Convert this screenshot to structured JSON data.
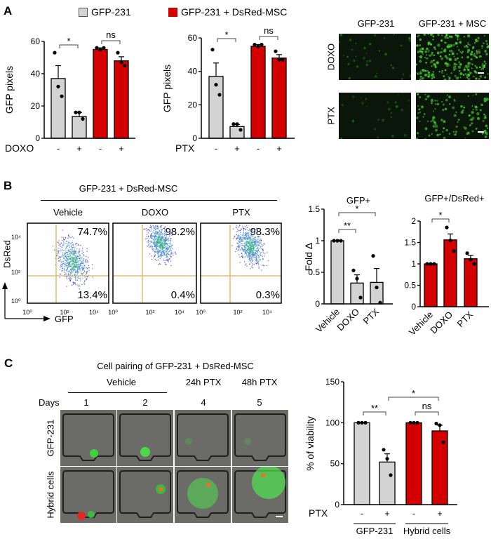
{
  "figure": {
    "panel_labels": {
      "a": "A",
      "b": "B",
      "c": "C"
    },
    "legend": [
      {
        "label": "GFP-231",
        "color": "#d3d3d3"
      },
      {
        "label": "GFP-231 + DsRed-MSC",
        "color": "#d40000"
      }
    ],
    "panel_a_images": {
      "columns": [
        "GFP-231",
        "GFP-231 + MSC"
      ],
      "rows": [
        "DOXO",
        "PTX"
      ]
    },
    "panel_b_flow": {
      "title": "GFP-231 + DsRed-MSC",
      "x_axis": "GFP",
      "y_axis": "DsRed",
      "x_ticks": [
        "10⁰",
        "10²",
        "10⁴"
      ],
      "y_ticks": [
        "10⁴",
        "10²",
        "10⁰"
      ],
      "conditions": [
        {
          "label": "Vehicle",
          "upper_right": "74.7%",
          "lower_right": "13.4%"
        },
        {
          "label": "DOXO",
          "upper_right": "98.2%",
          "lower_right": "0.4%"
        },
        {
          "label": "PTX",
          "upper_right": "98.3%",
          "lower_right": "0.3%"
        }
      ],
      "gate_color": "#d9b25a",
      "density_colors": [
        "#2b2bd0",
        "#3c7fd0",
        "#33a890"
      ]
    },
    "panel_c_images": {
      "title": "Cell pairing of GFP-231 + DsRed-MSC",
      "vehicle_label": "Vehicle",
      "treatment_labels": [
        "24h PTX",
        "48h PTX"
      ],
      "days_label": "Days",
      "days": [
        "1",
        "2",
        "4",
        "5"
      ],
      "rows": [
        "GFP-231",
        "Hybrid cells"
      ]
    }
  },
  "chart_data": [
    {
      "type": "bar",
      "ylabel": "GFP pixels",
      "ylim": [
        0,
        60
      ],
      "yticks": [
        0,
        20,
        40,
        60
      ],
      "treatment_label": "DOXO",
      "categories": [
        "-",
        "+",
        "-",
        "+"
      ],
      "groups": [
        "GFP-231",
        "GFP-231",
        "GFP-231 + DsRed-MSC",
        "GFP-231 + DsRed-MSC"
      ],
      "values": [
        37,
        13.5,
        55,
        48
      ],
      "sem": [
        8,
        2.5,
        1,
        2.5
      ],
      "points": [
        [
          53,
          32,
          26
        ],
        [
          16,
          16,
          12
        ],
        [
          56,
          55,
          56
        ],
        [
          53,
          47,
          45
        ]
      ],
      "colors": [
        "#d3d3d3",
        "#d3d3d3",
        "#d40000",
        "#d40000"
      ],
      "significance": [
        {
          "pair": [
            0,
            1
          ],
          "label": "*"
        },
        {
          "pair": [
            2,
            3
          ],
          "label": "ns"
        }
      ]
    },
    {
      "type": "bar",
      "ylabel": "GFP pixels",
      "ylim": [
        0,
        60
      ],
      "yticks": [
        0,
        20,
        40,
        60
      ],
      "treatment_label": "PTX",
      "categories": [
        "-",
        "+",
        "-",
        "+"
      ],
      "groups": [
        "GFP-231",
        "GFP-231",
        "GFP-231 + DsRed-MSC",
        "GFP-231 + DsRed-MSC"
      ],
      "values": [
        37,
        7,
        55,
        48
      ],
      "sem": [
        8,
        1.2,
        1,
        2
      ],
      "points": [
        [
          53,
          32,
          26
        ],
        [
          8.5,
          8.5,
          5
        ],
        [
          56,
          55,
          56
        ],
        [
          52,
          47,
          47
        ]
      ],
      "colors": [
        "#d3d3d3",
        "#d3d3d3",
        "#d40000",
        "#d40000"
      ],
      "significance": [
        {
          "pair": [
            0,
            1
          ],
          "label": "*"
        },
        {
          "pair": [
            2,
            3
          ],
          "label": "ns"
        }
      ]
    },
    {
      "type": "bar",
      "title": "GFP+",
      "ylabel": "Fold Δ",
      "ylim": [
        0,
        1.5
      ],
      "yticks": [
        0,
        0.5,
        1,
        1.5
      ],
      "categories": [
        "Vehicle",
        "DOXO",
        "PTX"
      ],
      "values": [
        1,
        0.33,
        0.34
      ],
      "sem": [
        0,
        0.13,
        0.22
      ],
      "points": [
        [
          1,
          1,
          1
        ],
        [
          0.53,
          0.4,
          0.1
        ],
        [
          0.76,
          0.26,
          0.02
        ]
      ],
      "colors": [
        "#d3d3d3",
        "#d3d3d3",
        "#d3d3d3"
      ],
      "significance": [
        {
          "pair": [
            0,
            1
          ],
          "label": "**"
        },
        {
          "pair": [
            0,
            2
          ],
          "label": "*"
        }
      ]
    },
    {
      "type": "bar",
      "title": "GFP+/DsRed+",
      "ylabel": "",
      "ylim": [
        0,
        2
      ],
      "yticks": [
        0,
        0.5,
        1,
        1.5,
        2
      ],
      "categories": [
        "Vehicle",
        "DOXO",
        "PTX"
      ],
      "values": [
        1,
        1.56,
        1.12
      ],
      "sem": [
        0,
        0.14,
        0.08
      ],
      "points": [
        [
          1,
          1,
          1
        ],
        [
          1.85,
          1.55,
          1.3
        ],
        [
          1.25,
          1.1,
          1.0
        ]
      ],
      "colors": [
        "#d40000",
        "#d40000",
        "#d40000"
      ],
      "significance": [
        {
          "pair": [
            0,
            1
          ],
          "label": "*"
        }
      ]
    },
    {
      "type": "bar",
      "ylabel": "% of viability",
      "ylim": [
        0,
        150
      ],
      "yticks": [
        0,
        50,
        100,
        150
      ],
      "treatment_label": "PTX",
      "categories": [
        "-",
        "+",
        "-",
        "+"
      ],
      "group_labels": [
        "GFP-231",
        "Hybrid cells"
      ],
      "values": [
        100,
        52,
        100,
        90
      ],
      "sem": [
        0,
        10,
        0,
        7
      ],
      "points": [
        [
          100,
          100,
          100
        ],
        [
          67,
          56,
          36
        ],
        [
          100,
          100,
          100
        ],
        [
          99,
          97,
          76
        ]
      ],
      "colors": [
        "#d3d3d3",
        "#d3d3d3",
        "#d40000",
        "#d40000"
      ],
      "significance": [
        {
          "pair": [
            0,
            1
          ],
          "label": "**"
        },
        {
          "pair": [
            2,
            3
          ],
          "label": "ns"
        },
        {
          "pair": [
            1,
            3
          ],
          "label": "*"
        }
      ]
    }
  ]
}
